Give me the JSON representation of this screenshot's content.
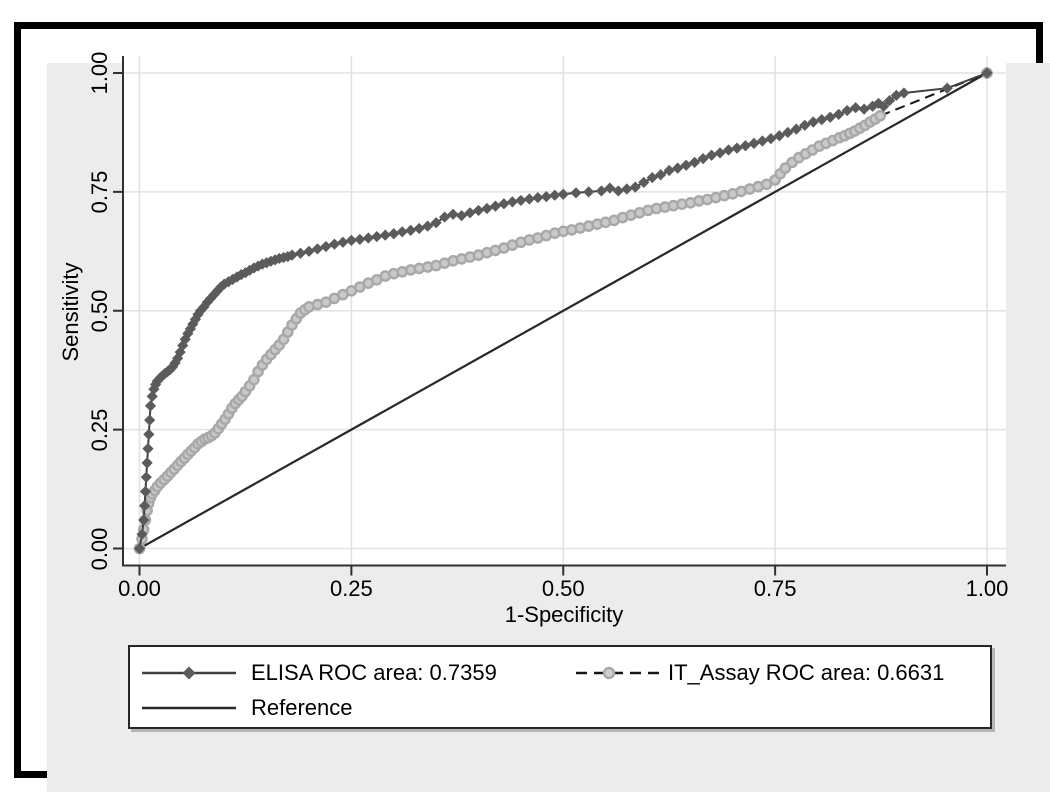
{
  "chart_data": {
    "type": "line",
    "title": "",
    "xlabel": "1-Specificity",
    "ylabel": "Sensitivity",
    "xlim": [
      0,
      1
    ],
    "ylim": [
      0,
      1
    ],
    "x_ticks": [
      0.0,
      0.25,
      0.5,
      0.75,
      1.0
    ],
    "y_ticks": [
      0.0,
      0.25,
      0.5,
      0.75,
      1.0
    ],
    "x_tick_labels": [
      "0.00",
      "0.25",
      "0.50",
      "0.75",
      "1.00"
    ],
    "y_tick_labels": [
      "0.00",
      "0.25",
      "0.50",
      "0.75",
      "1.00"
    ],
    "grid": true,
    "legend_position": "bottom",
    "series": [
      {
        "name": "ELISA ROC area: 0.7359",
        "marker": "diamond",
        "line_style": "solid",
        "marker_color": "#5b5b5b",
        "line_color": "#404040",
        "points": [
          [
            0,
            0
          ],
          [
            0.003,
            0.03
          ],
          [
            0.005,
            0.06
          ],
          [
            0.006,
            0.09
          ],
          [
            0.007,
            0.12
          ],
          [
            0.008,
            0.15
          ],
          [
            0.009,
            0.18
          ],
          [
            0.01,
            0.21
          ],
          [
            0.011,
            0.24
          ],
          [
            0.012,
            0.27
          ],
          [
            0.013,
            0.3
          ],
          [
            0.015,
            0.32
          ],
          [
            0.017,
            0.335
          ],
          [
            0.019,
            0.345
          ],
          [
            0.021,
            0.352
          ],
          [
            0.024,
            0.358
          ],
          [
            0.027,
            0.363
          ],
          [
            0.03,
            0.368
          ],
          [
            0.033,
            0.372
          ],
          [
            0.036,
            0.376
          ],
          [
            0.039,
            0.382
          ],
          [
            0.042,
            0.39
          ],
          [
            0.045,
            0.4
          ],
          [
            0.048,
            0.413
          ],
          [
            0.051,
            0.427
          ],
          [
            0.054,
            0.44
          ],
          [
            0.057,
            0.452
          ],
          [
            0.06,
            0.462
          ],
          [
            0.063,
            0.472
          ],
          [
            0.066,
            0.482
          ],
          [
            0.069,
            0.492
          ],
          [
            0.072,
            0.5
          ],
          [
            0.076,
            0.508
          ],
          [
            0.08,
            0.518
          ],
          [
            0.084,
            0.526
          ],
          [
            0.088,
            0.534
          ],
          [
            0.092,
            0.542
          ],
          [
            0.096,
            0.55
          ],
          [
            0.1,
            0.556
          ],
          [
            0.105,
            0.561
          ],
          [
            0.11,
            0.566
          ],
          [
            0.115,
            0.571
          ],
          [
            0.12,
            0.576
          ],
          [
            0.125,
            0.58
          ],
          [
            0.13,
            0.585
          ],
          [
            0.135,
            0.59
          ],
          [
            0.14,
            0.594
          ],
          [
            0.145,
            0.598
          ],
          [
            0.15,
            0.601
          ],
          [
            0.155,
            0.604
          ],
          [
            0.16,
            0.607
          ],
          [
            0.165,
            0.61
          ],
          [
            0.17,
            0.612
          ],
          [
            0.175,
            0.614
          ],
          [
            0.18,
            0.617
          ],
          [
            0.19,
            0.621
          ],
          [
            0.2,
            0.625
          ],
          [
            0.21,
            0.63
          ],
          [
            0.22,
            0.635
          ],
          [
            0.23,
            0.64
          ],
          [
            0.24,
            0.644
          ],
          [
            0.25,
            0.648
          ],
          [
            0.26,
            0.65
          ],
          [
            0.27,
            0.653
          ],
          [
            0.28,
            0.656
          ],
          [
            0.29,
            0.659
          ],
          [
            0.3,
            0.662
          ],
          [
            0.31,
            0.666
          ],
          [
            0.32,
            0.669
          ],
          [
            0.33,
            0.673
          ],
          [
            0.34,
            0.678
          ],
          [
            0.35,
            0.685
          ],
          [
            0.36,
            0.697
          ],
          [
            0.37,
            0.703
          ],
          [
            0.38,
            0.7
          ],
          [
            0.39,
            0.706
          ],
          [
            0.4,
            0.711
          ],
          [
            0.41,
            0.715
          ],
          [
            0.42,
            0.72
          ],
          [
            0.43,
            0.725
          ],
          [
            0.44,
            0.729
          ],
          [
            0.45,
            0.732
          ],
          [
            0.46,
            0.735
          ],
          [
            0.47,
            0.738
          ],
          [
            0.48,
            0.74
          ],
          [
            0.49,
            0.743
          ],
          [
            0.5,
            0.745
          ],
          [
            0.515,
            0.748
          ],
          [
            0.53,
            0.75
          ],
          [
            0.545,
            0.752
          ],
          [
            0.555,
            0.758
          ],
          [
            0.565,
            0.752
          ],
          [
            0.575,
            0.756
          ],
          [
            0.585,
            0.76
          ],
          [
            0.595,
            0.77
          ],
          [
            0.605,
            0.78
          ],
          [
            0.615,
            0.786
          ],
          [
            0.625,
            0.795
          ],
          [
            0.635,
            0.8
          ],
          [
            0.645,
            0.806
          ],
          [
            0.655,
            0.812
          ],
          [
            0.665,
            0.82
          ],
          [
            0.675,
            0.827
          ],
          [
            0.685,
            0.832
          ],
          [
            0.695,
            0.838
          ],
          [
            0.705,
            0.842
          ],
          [
            0.715,
            0.847
          ],
          [
            0.725,
            0.852
          ],
          [
            0.735,
            0.857
          ],
          [
            0.745,
            0.862
          ],
          [
            0.755,
            0.868
          ],
          [
            0.765,
            0.875
          ],
          [
            0.775,
            0.882
          ],
          [
            0.785,
            0.89
          ],
          [
            0.795,
            0.897
          ],
          [
            0.805,
            0.902
          ],
          [
            0.815,
            0.907
          ],
          [
            0.825,
            0.913
          ],
          [
            0.835,
            0.921
          ],
          [
            0.845,
            0.927
          ],
          [
            0.855,
            0.924
          ],
          [
            0.865,
            0.93
          ],
          [
            0.872,
            0.936
          ],
          [
            0.878,
            0.93
          ],
          [
            0.885,
            0.942
          ],
          [
            0.893,
            0.953
          ],
          [
            0.902,
            0.958
          ],
          [
            0.953,
            0.968
          ],
          [
            1,
            1
          ]
        ]
      },
      {
        "name": "IT_Assay ROC area: 0.6631",
        "marker": "circle",
        "line_style": "dashed",
        "marker_color": "#a8a8a8",
        "marker_fill": "#c9c9c9",
        "line_color": "#161616",
        "points": [
          [
            0,
            0
          ],
          [
            0.003,
            0.02
          ],
          [
            0.005,
            0.04
          ],
          [
            0.007,
            0.06
          ],
          [
            0.009,
            0.08
          ],
          [
            0.011,
            0.095
          ],
          [
            0.013,
            0.107
          ],
          [
            0.015,
            0.115
          ],
          [
            0.018,
            0.122
          ],
          [
            0.021,
            0.13
          ],
          [
            0.025,
            0.138
          ],
          [
            0.029,
            0.145
          ],
          [
            0.033,
            0.152
          ],
          [
            0.037,
            0.16
          ],
          [
            0.041,
            0.167
          ],
          [
            0.045,
            0.175
          ],
          [
            0.049,
            0.183
          ],
          [
            0.053,
            0.19
          ],
          [
            0.057,
            0.198
          ],
          [
            0.061,
            0.205
          ],
          [
            0.065,
            0.212
          ],
          [
            0.069,
            0.22
          ],
          [
            0.073,
            0.225
          ],
          [
            0.077,
            0.23
          ],
          [
            0.081,
            0.233
          ],
          [
            0.085,
            0.237
          ],
          [
            0.089,
            0.243
          ],
          [
            0.093,
            0.252
          ],
          [
            0.097,
            0.262
          ],
          [
            0.101,
            0.272
          ],
          [
            0.105,
            0.283
          ],
          [
            0.109,
            0.295
          ],
          [
            0.113,
            0.305
          ],
          [
            0.117,
            0.313
          ],
          [
            0.121,
            0.32
          ],
          [
            0.125,
            0.33
          ],
          [
            0.13,
            0.342
          ],
          [
            0.135,
            0.355
          ],
          [
            0.14,
            0.372
          ],
          [
            0.145,
            0.386
          ],
          [
            0.15,
            0.398
          ],
          [
            0.155,
            0.408
          ],
          [
            0.16,
            0.418
          ],
          [
            0.165,
            0.428
          ],
          [
            0.17,
            0.44
          ],
          [
            0.175,
            0.455
          ],
          [
            0.18,
            0.47
          ],
          [
            0.185,
            0.483
          ],
          [
            0.19,
            0.495
          ],
          [
            0.195,
            0.502
          ],
          [
            0.2,
            0.508
          ],
          [
            0.21,
            0.513
          ],
          [
            0.22,
            0.518
          ],
          [
            0.23,
            0.526
          ],
          [
            0.24,
            0.534
          ],
          [
            0.25,
            0.542
          ],
          [
            0.26,
            0.55
          ],
          [
            0.27,
            0.558
          ],
          [
            0.28,
            0.565
          ],
          [
            0.29,
            0.573
          ],
          [
            0.3,
            0.578
          ],
          [
            0.31,
            0.582
          ],
          [
            0.32,
            0.586
          ],
          [
            0.33,
            0.589
          ],
          [
            0.34,
            0.592
          ],
          [
            0.35,
            0.595
          ],
          [
            0.36,
            0.6
          ],
          [
            0.37,
            0.605
          ],
          [
            0.38,
            0.609
          ],
          [
            0.39,
            0.613
          ],
          [
            0.4,
            0.617
          ],
          [
            0.41,
            0.622
          ],
          [
            0.42,
            0.627
          ],
          [
            0.43,
            0.632
          ],
          [
            0.44,
            0.638
          ],
          [
            0.45,
            0.644
          ],
          [
            0.46,
            0.649
          ],
          [
            0.47,
            0.653
          ],
          [
            0.48,
            0.658
          ],
          [
            0.49,
            0.663
          ],
          [
            0.5,
            0.667
          ],
          [
            0.51,
            0.67
          ],
          [
            0.52,
            0.674
          ],
          [
            0.53,
            0.678
          ],
          [
            0.54,
            0.682
          ],
          [
            0.55,
            0.686
          ],
          [
            0.56,
            0.69
          ],
          [
            0.57,
            0.696
          ],
          [
            0.58,
            0.701
          ],
          [
            0.59,
            0.706
          ],
          [
            0.6,
            0.711
          ],
          [
            0.61,
            0.715
          ],
          [
            0.62,
            0.718
          ],
          [
            0.63,
            0.721
          ],
          [
            0.64,
            0.724
          ],
          [
            0.65,
            0.727
          ],
          [
            0.66,
            0.731
          ],
          [
            0.67,
            0.734
          ],
          [
            0.68,
            0.738
          ],
          [
            0.69,
            0.742
          ],
          [
            0.7,
            0.746
          ],
          [
            0.71,
            0.751
          ],
          [
            0.72,
            0.756
          ],
          [
            0.73,
            0.761
          ],
          [
            0.74,
            0.766
          ],
          [
            0.75,
            0.775
          ],
          [
            0.756,
            0.788
          ],
          [
            0.762,
            0.8
          ],
          [
            0.77,
            0.812
          ],
          [
            0.778,
            0.822
          ],
          [
            0.786,
            0.83
          ],
          [
            0.794,
            0.838
          ],
          [
            0.802,
            0.846
          ],
          [
            0.81,
            0.852
          ],
          [
            0.818,
            0.858
          ],
          [
            0.826,
            0.864
          ],
          [
            0.832,
            0.868
          ],
          [
            0.838,
            0.873
          ],
          [
            0.844,
            0.878
          ],
          [
            0.85,
            0.884
          ],
          [
            0.856,
            0.89
          ],
          [
            0.862,
            0.897
          ],
          [
            0.868,
            0.903
          ],
          [
            0.874,
            0.91
          ],
          [
            1,
            1
          ]
        ]
      },
      {
        "name": "Reference",
        "marker": "none",
        "line_style": "solid",
        "line_color": "#282828",
        "points": [
          [
            0,
            0
          ],
          [
            1,
            1
          ]
        ]
      }
    ]
  },
  "legend": {
    "entries": [
      {
        "label": "ELISA ROC area: 0.7359"
      },
      {
        "label": "IT_Assay ROC area: 0.6631"
      },
      {
        "label": "Reference"
      }
    ]
  },
  "colors": {
    "panel_background": "#ececec",
    "plot_background": "#ffffff",
    "gridline": "#e2e2e2",
    "axis": "#303030",
    "frame_border": "#000000",
    "elisa_marker": "#5b5b5b",
    "it_assay_marker": "#a8a8a8",
    "reference_line": "#282828"
  }
}
